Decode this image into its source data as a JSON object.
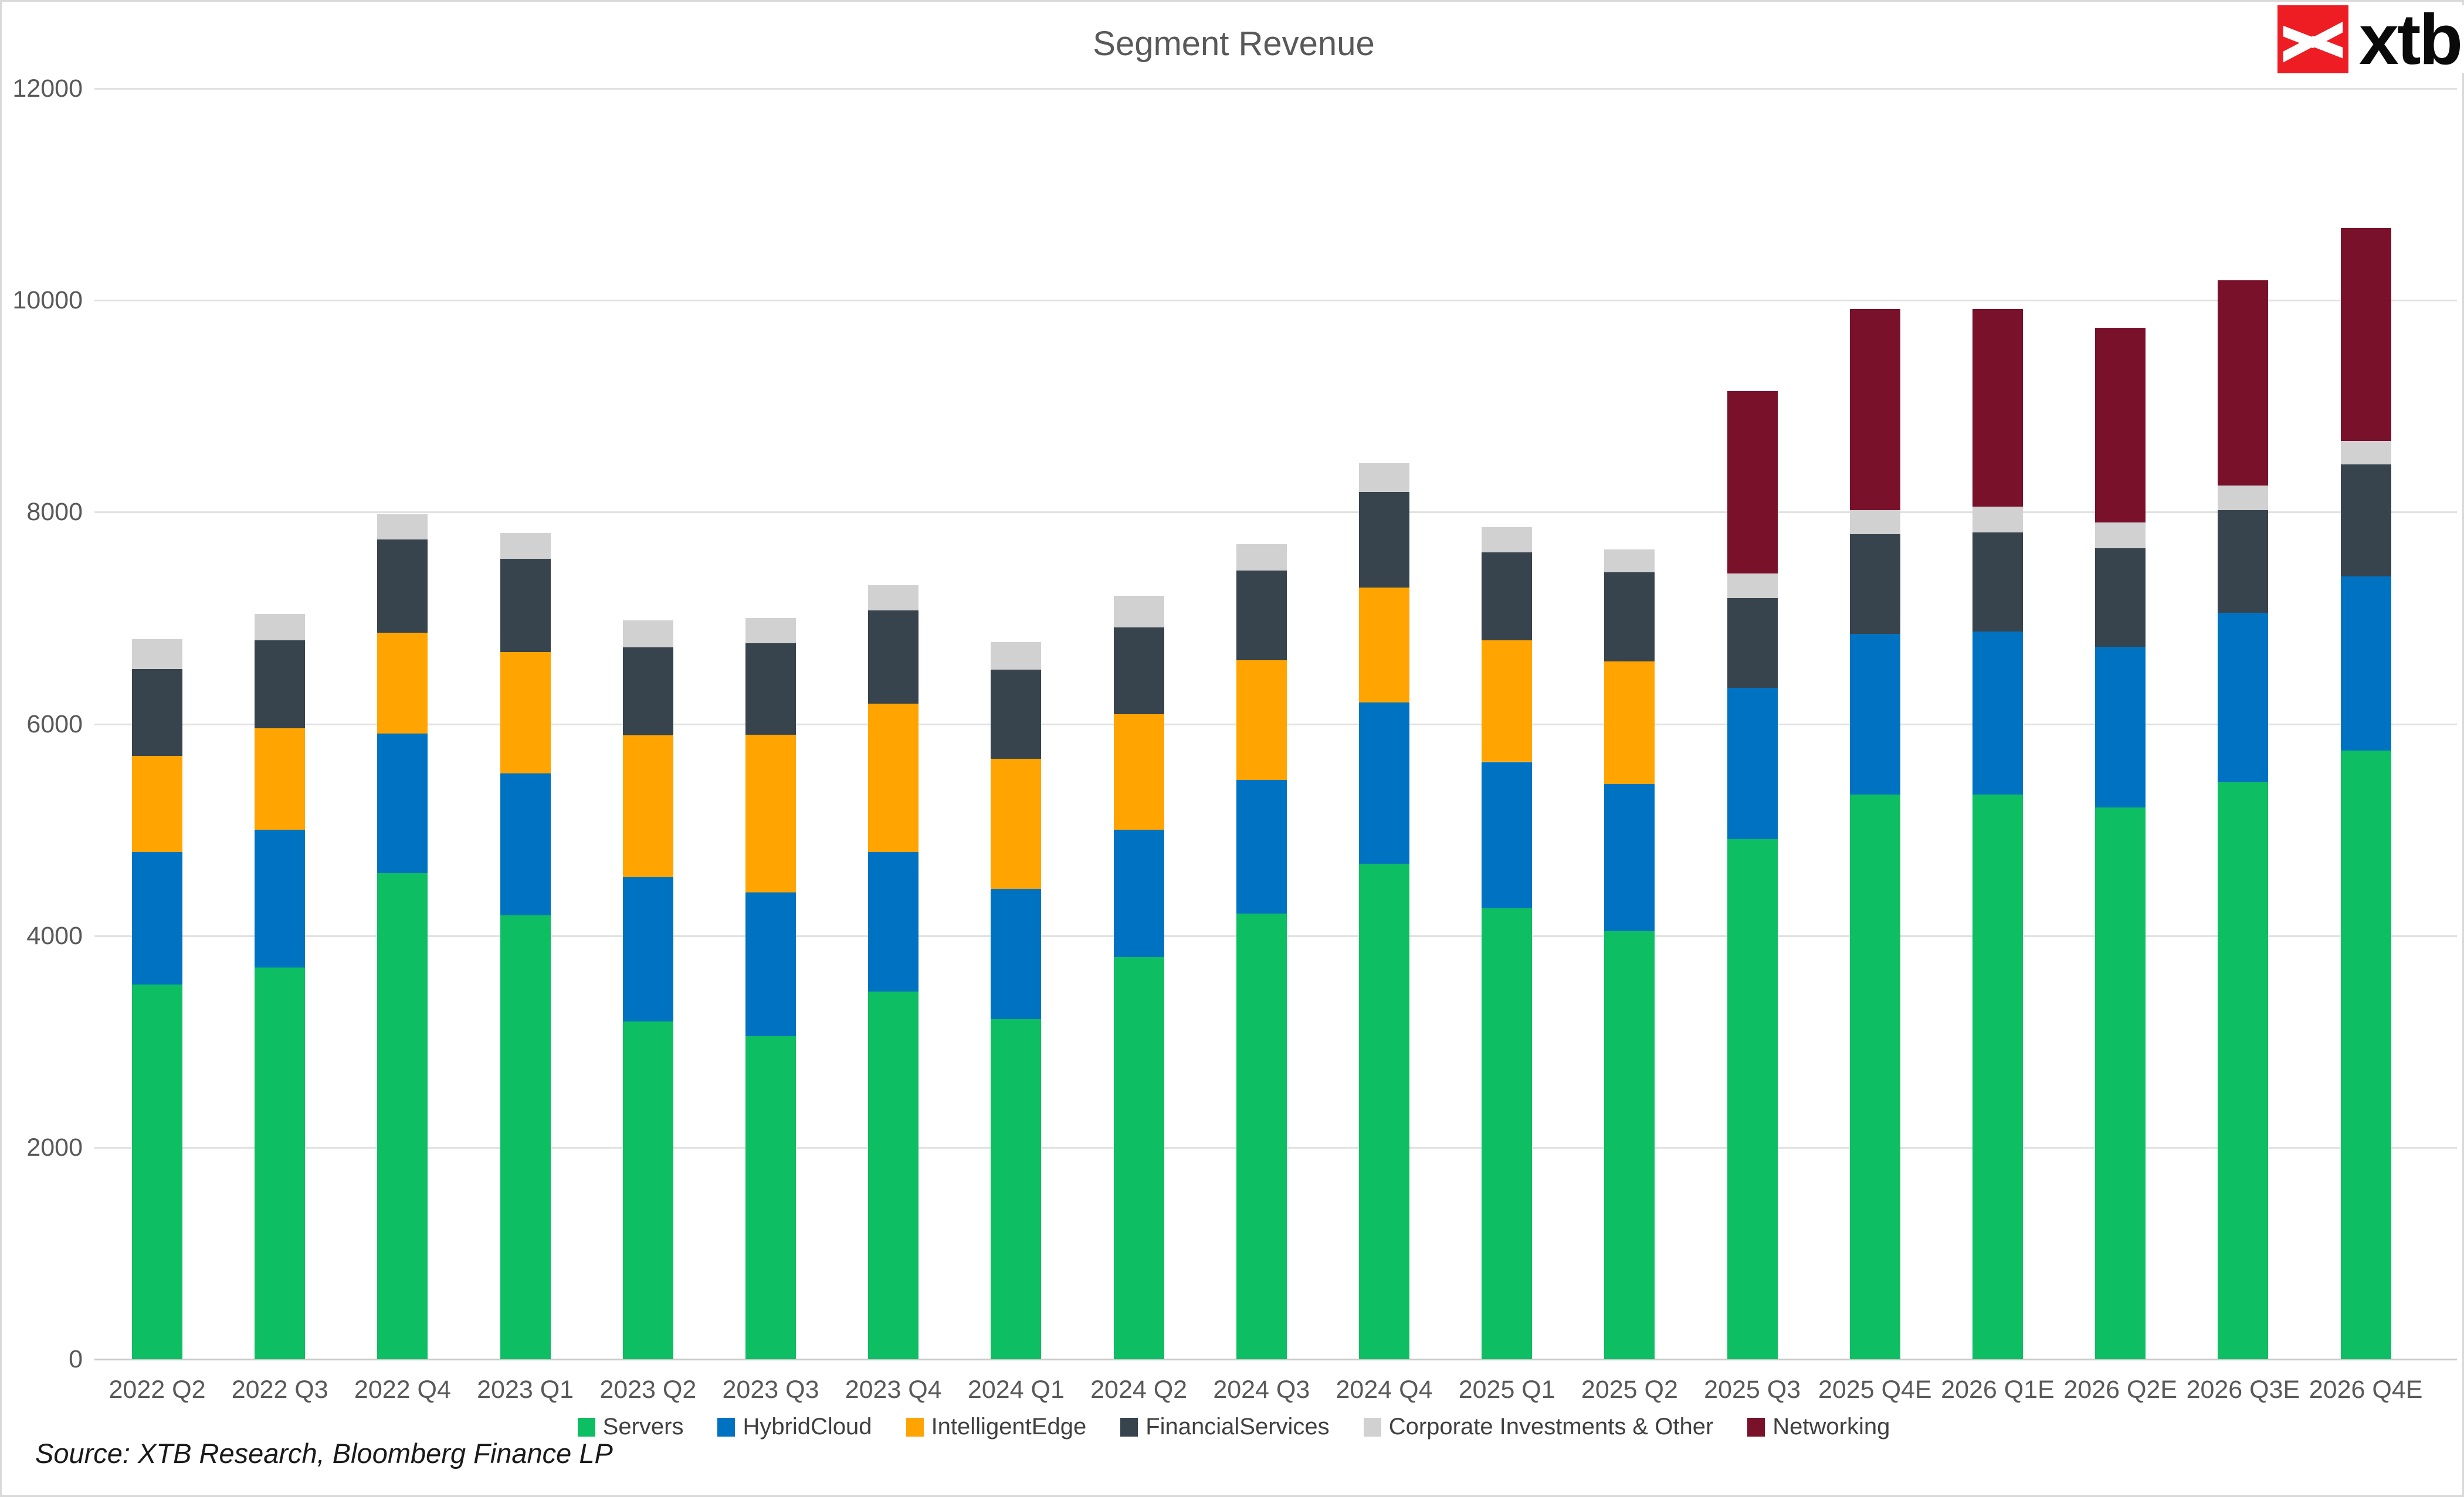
{
  "title": {
    "text": "Segment Revenue"
  },
  "logo": {
    "text": "xtb",
    "box_color": "#ee1c23",
    "mark_color": "#ffffff"
  },
  "footer": {
    "source": "Source: XTB Research, Bloomberg Finance LP"
  },
  "chart_data": {
    "type": "bar",
    "stacked": true,
    "title": "Segment Revenue",
    "xlabel": "",
    "ylabel": "",
    "ylim": [
      0,
      12000
    ],
    "y_ticks": [
      0,
      2000,
      4000,
      6000,
      8000,
      10000,
      12000
    ],
    "grid": true,
    "legend_position": "bottom",
    "categories": [
      "2022 Q2",
      "2022 Q3",
      "2022 Q4",
      "2023 Q1",
      "2023 Q2",
      "2023 Q3",
      "2023 Q4",
      "2024 Q1",
      "2024 Q2",
      "2024 Q3",
      "2024 Q4",
      "2025 Q1",
      "2025 Q2",
      "2025 Q3",
      "2025 Q4E",
      "2026 Q1E",
      "2026 Q2E",
      "2026 Q3E",
      "2026 Q4E"
    ],
    "series": [
      {
        "name": "Servers",
        "color": "#0dbe62",
        "values": [
          3540,
          3700,
          4590,
          4190,
          3190,
          3050,
          3470,
          3210,
          3800,
          4210,
          4680,
          4260,
          4040,
          4910,
          5330,
          5330,
          5210,
          5450,
          5750
        ]
      },
      {
        "name": "HybridCloud",
        "color": "#0072c2",
        "values": [
          1250,
          1300,
          1320,
          1340,
          1360,
          1360,
          1320,
          1230,
          1200,
          1260,
          1520,
          1380,
          1390,
          1430,
          1520,
          1540,
          1520,
          1600,
          1640
        ]
      },
      {
        "name": "IntelligentEdge",
        "color": "#ffa400",
        "values": [
          910,
          960,
          950,
          1150,
          1340,
          1490,
          1400,
          1230,
          1090,
          1130,
          1090,
          1150,
          1160,
          0,
          0,
          0,
          0,
          0,
          0
        ]
      },
      {
        "name": "FinancialServices",
        "color": "#37434d",
        "values": [
          820,
          830,
          880,
          880,
          830,
          860,
          880,
          840,
          820,
          850,
          900,
          830,
          840,
          850,
          940,
          940,
          930,
          970,
          1060
        ]
      },
      {
        "name": "Corporate Investments & Other",
        "color": "#d1d1d1",
        "values": [
          280,
          250,
          240,
          240,
          260,
          240,
          240,
          260,
          300,
          250,
          270,
          240,
          220,
          230,
          230,
          240,
          240,
          230,
          220
        ]
      },
      {
        "name": "Networking",
        "color": "#79112a",
        "values": [
          0,
          0,
          0,
          0,
          0,
          0,
          0,
          0,
          0,
          0,
          0,
          0,
          0,
          1720,
          1900,
          1870,
          1840,
          1940,
          2010
        ]
      }
    ]
  }
}
